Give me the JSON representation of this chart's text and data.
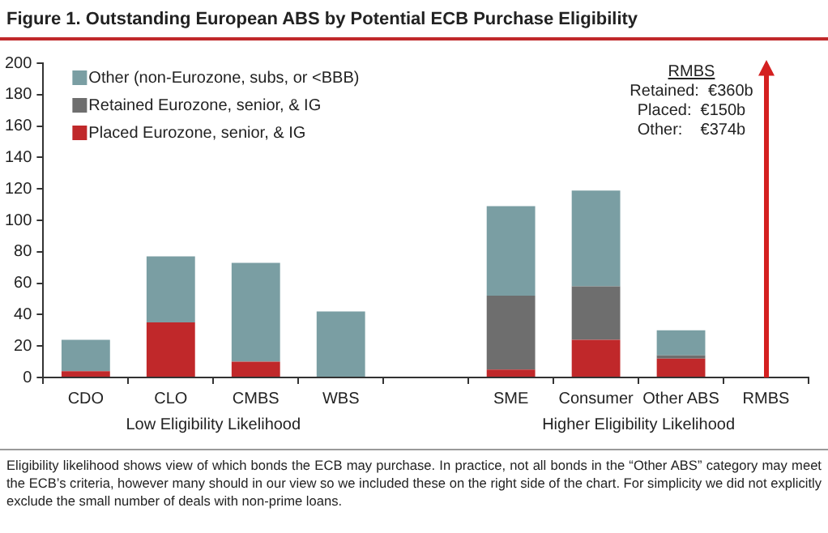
{
  "chart_data": {
    "type": "bar",
    "title": "Figure 1.  Outstanding European ABS by Potential ECB Purchase Eligibility",
    "categories": [
      "CDO",
      "CLO",
      "CMBS",
      "WBS",
      null,
      "SME",
      "Consumer",
      "Other ABS",
      "RMBS"
    ],
    "series": [
      {
        "name": "Placed Eurozone, senior, & IG",
        "color": "#c0282a",
        "values": [
          4,
          35,
          10,
          0,
          null,
          5,
          24,
          12,
          null
        ]
      },
      {
        "name": "Retained Eurozone, senior, & IG",
        "color": "#6e6e6e",
        "values": [
          0,
          0,
          0,
          0,
          null,
          47,
          34,
          2,
          null
        ]
      },
      {
        "name": "Other (non-Eurozone, subs, or <BBB)",
        "color": "#7a9ea3",
        "values": [
          20,
          42,
          63,
          42,
          null,
          57,
          61,
          16,
          null
        ]
      }
    ],
    "stacked": true,
    "ylim": [
      0,
      200
    ],
    "yticks": [
      0,
      20,
      40,
      60,
      80,
      100,
      120,
      140,
      160,
      180,
      200
    ],
    "grid": false,
    "legend": "top left",
    "annotations": [
      "RMBS",
      "Retained:  €360b",
      "Placed:  €150b",
      "Other:    €374b",
      "Low Eligibility Likelihood",
      "Higher Eligibility Likelihood",
      "Eligibility likelihood shows view of which bonds the ECB may purchase. In practice, not all bonds in the “Other ABS” category may meet the ECB’s criteria, however many should in our view so we included these on the right side of the chart.  For simplicity we did not explicitly exclude the small number of deals with non-prime loans."
    ]
  }
}
